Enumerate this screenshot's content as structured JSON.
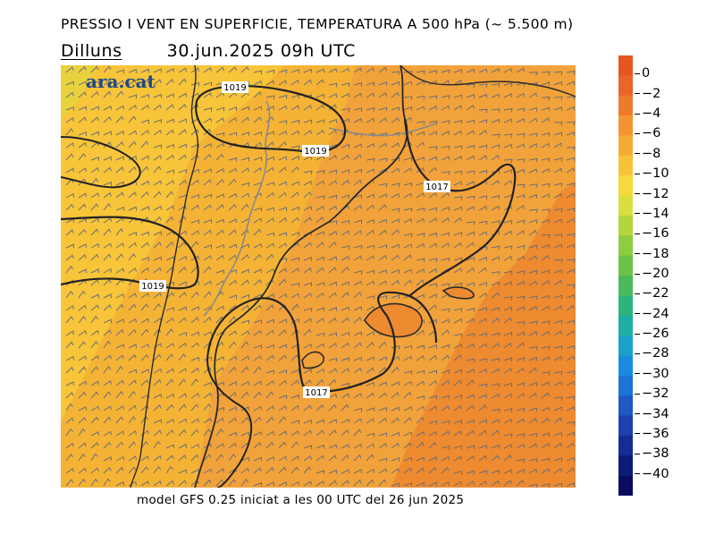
{
  "header": {
    "title": "PRESSIO I VENT EN SUPERFICIE, TEMPERATURA A 500 hPa (~ 5.500 m)",
    "day": "Dilluns",
    "datetime": "30.jun.2025 09h UTC"
  },
  "logo": {
    "text": "ara.cat"
  },
  "footer": {
    "text": "model GFS 0.25 iniciat a les 00 UTC del 26 jun 2025"
  },
  "isobars": [
    {
      "label": "1019"
    },
    {
      "label": "1019"
    },
    {
      "label": "1017"
    },
    {
      "label": "1019"
    },
    {
      "label": "1017"
    }
  ],
  "colors": {
    "temp_minus_6": "#f2a23a",
    "temp_minus_8": "#f5b336",
    "temp_minus_10": "#f8cc3c",
    "temp_minus_4": "#ee8a30",
    "temp_minus_12": "#e8d23e"
  },
  "legend": [
    {
      "label": "0",
      "color": "#e4561e"
    },
    {
      "label": "−2",
      "color": "#e96528"
    },
    {
      "label": "−4",
      "color": "#ee7a2c"
    },
    {
      "label": "−6",
      "color": "#f29432"
    },
    {
      "label": "−8",
      "color": "#f5ac35"
    },
    {
      "label": "−10",
      "color": "#f8c33a"
    },
    {
      "label": "−12",
      "color": "#f6da3c"
    },
    {
      "label": "−14",
      "color": "#d8df3e"
    },
    {
      "label": "−16",
      "color": "#b4d53e"
    },
    {
      "label": "−18",
      "color": "#8ecc40"
    },
    {
      "label": "−20",
      "color": "#6cc246"
    },
    {
      "label": "−22",
      "color": "#4cba5c"
    },
    {
      "label": "−24",
      "color": "#2eb37c"
    },
    {
      "label": "−26",
      "color": "#1eaea4"
    },
    {
      "label": "−28",
      "color": "#1aa2c8"
    },
    {
      "label": "−30",
      "color": "#1a8ce0"
    },
    {
      "label": "−32",
      "color": "#1d72d8"
    },
    {
      "label": "−34",
      "color": "#2058c4"
    },
    {
      "label": "−36",
      "color": "#1d40ae"
    },
    {
      "label": "−38",
      "color": "#152c92"
    },
    {
      "label": "−40",
      "color": "#0c1a78"
    },
    {
      "label": "",
      "color": "#0a0a5e"
    }
  ]
}
